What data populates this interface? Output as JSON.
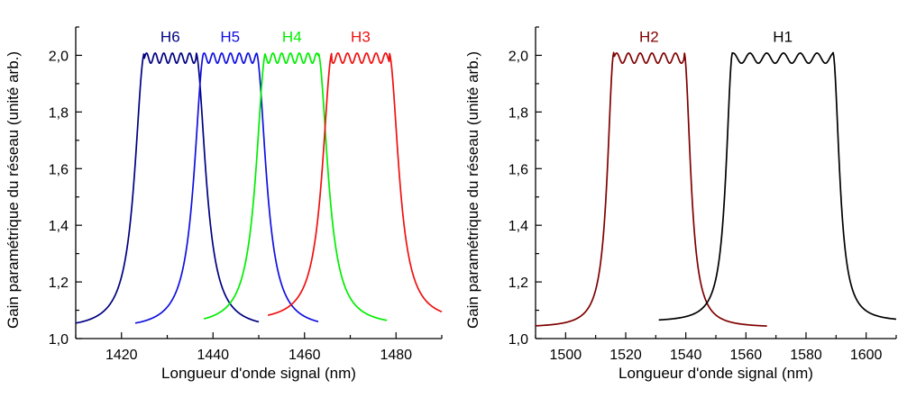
{
  "chart_data": [
    {
      "type": "line",
      "xlabel": "Longueur d'onde signal (nm)",
      "ylabel": "Gain paramétrique du réseau (unité arb.)",
      "xlim": [
        1410,
        1490
      ],
      "ylim": [
        1.0,
        2.1
      ],
      "xticks": [
        1420,
        1440,
        1460,
        1480
      ],
      "xtick_labels": [
        "1420",
        "1440",
        "1460",
        "1480"
      ],
      "yticks": [
        1.0,
        1.2,
        1.4,
        1.6,
        1.8,
        2.0
      ],
      "ytick_labels": [
        "1,0",
        "1,2",
        "1,4",
        "1,6",
        "1,8",
        "2,0"
      ],
      "grid": false,
      "series": [
        {
          "name": "H6",
          "color": "#000080",
          "x_start": 1410,
          "x_end": 1450,
          "edge_left": 1425.0,
          "edge_right": 1436.3,
          "peak": 2.01,
          "floor": 1.035
        },
        {
          "name": "H5",
          "color": "#1010e0",
          "x_start": 1423,
          "x_end": 1463,
          "edge_left": 1438.0,
          "edge_right": 1449.5,
          "peak": 2.01,
          "floor": 1.035
        },
        {
          "name": "H4",
          "color": "#00ee00",
          "x_start": 1438,
          "x_end": 1478,
          "edge_left": 1451.5,
          "edge_right": 1463.0,
          "peak": 2.01,
          "floor": 1.045
        },
        {
          "name": "H3",
          "color": "#ee1111",
          "x_start": 1452,
          "x_end": 1490,
          "edge_left": 1466.0,
          "edge_right": 1478.5,
          "peak": 2.01,
          "floor": 1.06
        }
      ]
    },
    {
      "type": "line",
      "xlabel": "Longueur d'onde signal (nm)",
      "ylabel": "Gain paramétrique du réseau (unité arb.)",
      "xlim": [
        1490,
        1610
      ],
      "ylim": [
        1.0,
        2.1
      ],
      "xticks": [
        1500,
        1520,
        1540,
        1560,
        1580,
        1600
      ],
      "xtick_labels": [
        "1500",
        "1520",
        "1540",
        "1560",
        "1580",
        "1600"
      ],
      "yticks": [
        1.0,
        1.2,
        1.4,
        1.6,
        1.8,
        2.0
      ],
      "ytick_labels": [
        "1,0",
        "1,2",
        "1,4",
        "1,6",
        "1,8",
        "2,0"
      ],
      "grid": false,
      "series": [
        {
          "name": "H2",
          "color": "#800000",
          "x_start": 1490,
          "x_end": 1567,
          "edge_left": 1516.0,
          "edge_right": 1539.5,
          "peak": 2.01,
          "floor": 1.04
        },
        {
          "name": "H1",
          "color": "#000000",
          "x_start": 1531,
          "x_end": 1610,
          "edge_left": 1555.5,
          "edge_right": 1589.0,
          "peak": 2.01,
          "floor": 1.06
        }
      ]
    }
  ]
}
